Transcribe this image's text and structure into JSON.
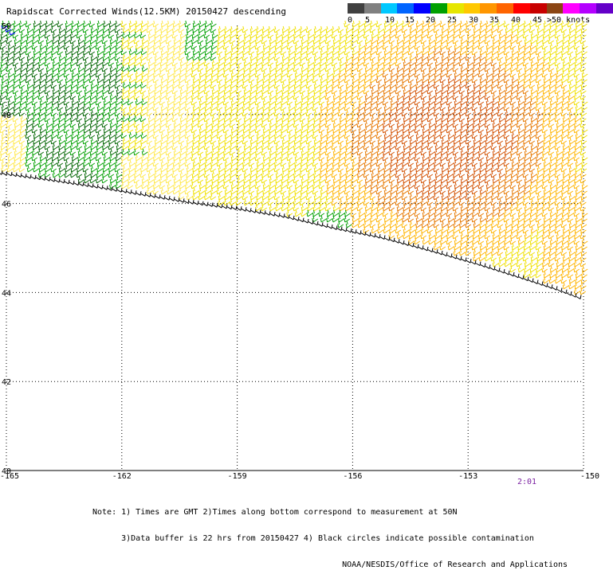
{
  "title": "Rapidscat Corrected Winds(12.5KM) 20150427 descending",
  "legend": {
    "colors": [
      "#404040",
      "#808080",
      "#00c8ff",
      "#0064ff",
      "#0000ff",
      "#00a000",
      "#e6e600",
      "#ffc800",
      "#ff9600",
      "#ff6400",
      "#ff0000",
      "#c80000",
      "#8b4513",
      "#ff00ff",
      "#b400ff",
      "#6400c8"
    ],
    "labels": [
      "0",
      "5",
      "10",
      "15",
      "20",
      "25",
      "30",
      "35",
      "40",
      "45",
      ">50 knots"
    ]
  },
  "map": {
    "lon_ticks": [
      "-165",
      "-162",
      "-159",
      "-156",
      "-153",
      "-150"
    ],
    "lat_ticks": [
      "50",
      "48",
      "46",
      "44",
      "42",
      "40"
    ],
    "lon_range": [
      -165,
      -150
    ],
    "lat_range": [
      40,
      50
    ],
    "grid": "dotted",
    "swath_colors": {
      "green": "#00a000",
      "dark_green": "#006400",
      "yellow": "#f0e000",
      "light_yellow": "#ffe84a",
      "orange": "#ffb400",
      "dark_orange": "#e67800",
      "red_orange": "#d25000",
      "edge_black": "#000000"
    }
  },
  "time_label": "2:01",
  "notes": [
    "Note: 1) Times are GMT 2)Times along bottom correspond to measurement at 50N",
    "      3)Data buffer is 22 hrs from 20150427 4) Black circles indicate possible contamination",
    "                                                    NOAA/NESDIS/Office of Research and Applications"
  ]
}
